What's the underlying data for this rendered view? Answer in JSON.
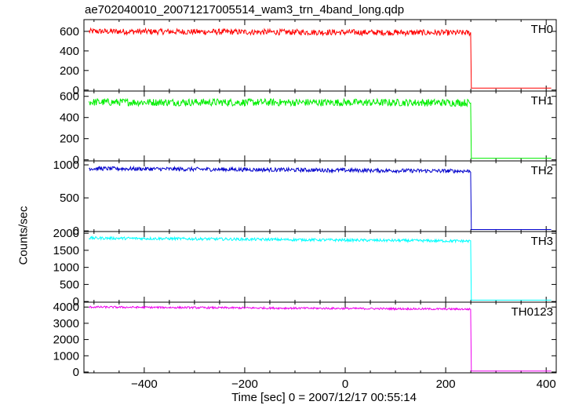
{
  "chart_data": {
    "type": "line",
    "title": "ae702040010_20071217005514_wam3_trn_4band_long.qdp",
    "xlabel": "Time [sec] 0 = 2007/12/17 00:55:14",
    "ylabel": "Counts/sec",
    "xlim": [
      -520,
      420
    ],
    "x_ticks": [
      -400,
      -200,
      0,
      200,
      400
    ],
    "x_tick_labels": [
      "−400",
      "−200",
      "0",
      "200",
      "400"
    ],
    "grid": false,
    "panels": [
      {
        "label": "TH0",
        "color": "#ff0000",
        "ylim": [
          -10,
          720
        ],
        "y_ticks": [
          0,
          200,
          400,
          600
        ],
        "x": [
          -510,
          250,
          251,
          410
        ],
        "y": [
          600,
          585,
          20,
          20
        ],
        "noise": 30
      },
      {
        "label": "TH1",
        "color": "#00ee00",
        "ylim": [
          -10,
          650
        ],
        "y_ticks": [
          0,
          200,
          400,
          600
        ],
        "x": [
          -510,
          250,
          251,
          410
        ],
        "y": [
          545,
          540,
          15,
          15
        ],
        "noise": 35
      },
      {
        "label": "TH2",
        "color": "#0000cc",
        "ylim": [
          -10,
          1060
        ],
        "y_ticks": [
          0,
          500,
          1000
        ],
        "x": [
          -510,
          250,
          251,
          410
        ],
        "y": [
          945,
          905,
          20,
          20
        ],
        "noise": 30
      },
      {
        "label": "TH3",
        "color": "#00ffff",
        "ylim": [
          -20,
          2050
        ],
        "y_ticks": [
          0,
          500,
          1000,
          1500,
          2000
        ],
        "x": [
          -510,
          250,
          251,
          410
        ],
        "y": [
          1860,
          1770,
          40,
          40
        ],
        "noise": 40
      },
      {
        "label": "TH0123",
        "color": "#ee00ee",
        "ylim": [
          -50,
          4300
        ],
        "y_ticks": [
          0,
          1000,
          2000,
          3000,
          4000
        ],
        "x": [
          -510,
          250,
          251,
          410
        ],
        "y": [
          4000,
          3870,
          60,
          60
        ],
        "noise": 60
      }
    ]
  }
}
